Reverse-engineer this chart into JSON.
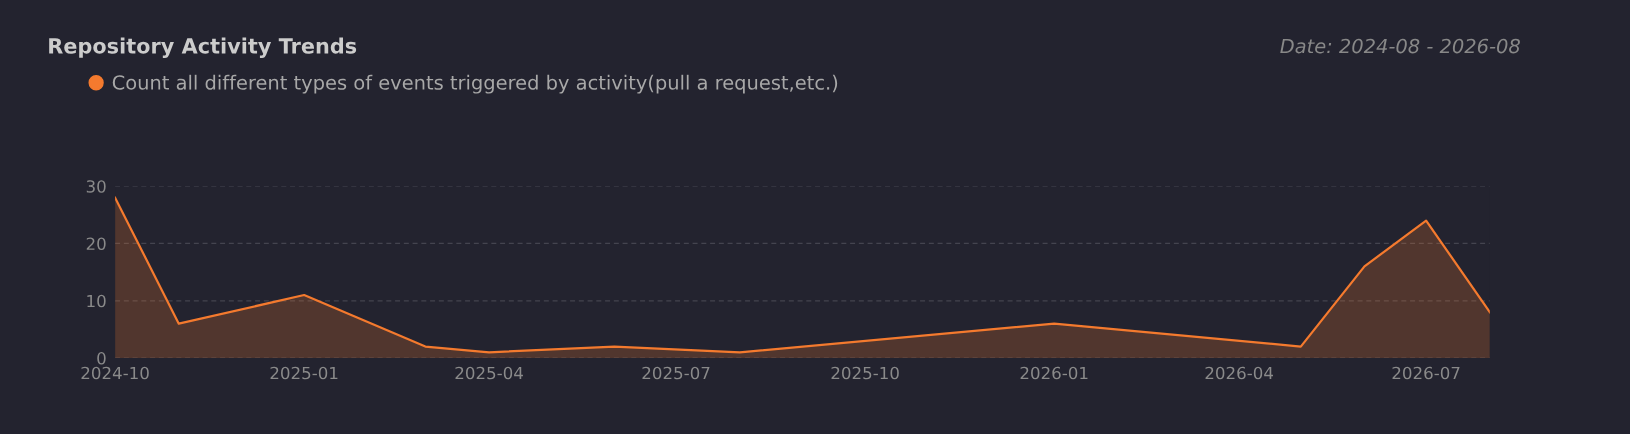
{
  "chart_data": {
    "type": "area",
    "title": "Repository Activity Trends",
    "subtitle": "Date: 2024-08 - 2026-08",
    "x": [
      "2024-10-01",
      "2024-11-01",
      "2025-01-01",
      "2025-03-01",
      "2025-04-01",
      "2025-06-01",
      "2025-08-01",
      "2026-01-01",
      "2026-05-01",
      "2026-06-01",
      "2026-07-01",
      "2026-08-01"
    ],
    "series": [
      {
        "name": "Count all different types of events triggered by activity(pull a request,etc.)",
        "color": "#f47a2e",
        "values": [
          28,
          6,
          11,
          2,
          1,
          2,
          1,
          6,
          2,
          16,
          24,
          8
        ]
      }
    ],
    "xlim": [
      "2024-10-01",
      "2026-08-01"
    ],
    "xticks": [
      {
        "value": "2024-10-01",
        "label": "2024-10"
      },
      {
        "value": "2025-01-01",
        "label": "2025-01"
      },
      {
        "value": "2025-04-01",
        "label": "2025-04"
      },
      {
        "value": "2025-07-01",
        "label": "2025-07"
      },
      {
        "value": "2025-10-01",
        "label": "2025-10"
      },
      {
        "value": "2026-01-01",
        "label": "2026-01"
      },
      {
        "value": "2026-04-01",
        "label": "2026-04"
      },
      {
        "value": "2026-07-01",
        "label": "2026-07"
      }
    ],
    "ylim": [
      0,
      30
    ],
    "yticks": [
      0,
      10,
      20,
      30
    ],
    "grid": "y",
    "legend": "top left",
    "marker": "none",
    "line_style": "solid"
  }
}
